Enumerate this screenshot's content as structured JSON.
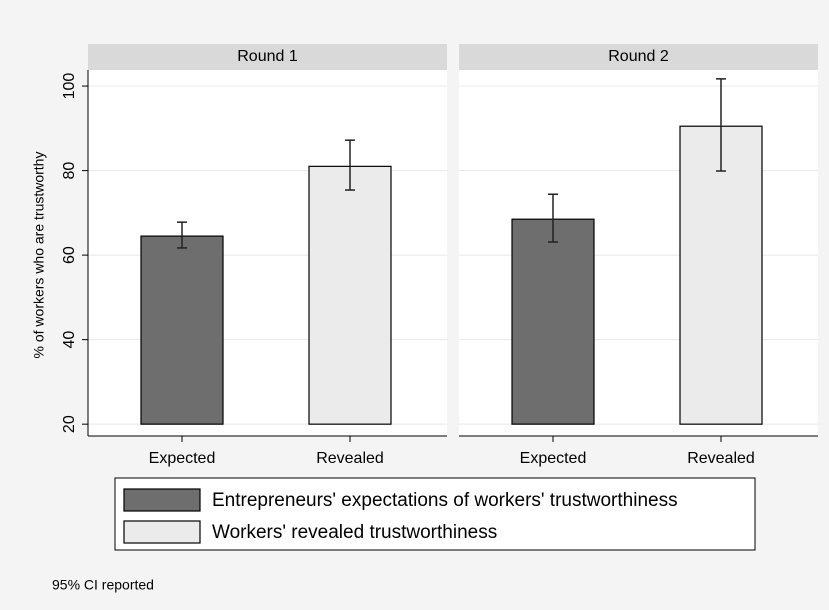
{
  "chart_data": {
    "type": "bar",
    "ylabel": "% of workers who are trustworthy",
    "panels": [
      "Round 1",
      "Round 2"
    ],
    "categories": [
      "Expected",
      "Revealed"
    ],
    "series": [
      {
        "name": "Entrepreneurs' expectations of workers' trustworthiness",
        "color": "#6e6e6e",
        "values": [
          64.5,
          68.5
        ],
        "ci_low": [
          61.7,
          63.1
        ],
        "ci_high": [
          67.8,
          74.4
        ]
      },
      {
        "name": "Workers' revealed trustworthiness",
        "color": "#ebebeb",
        "values": [
          81,
          90.5
        ],
        "ci_low": [
          75.4,
          79.9
        ],
        "ci_high": [
          87.2,
          101.7
        ]
      }
    ],
    "ylim": [
      17.2,
      103.8
    ],
    "yticks": [
      20,
      40,
      60,
      80,
      100
    ],
    "grid": true,
    "note": "95% CI reported"
  }
}
